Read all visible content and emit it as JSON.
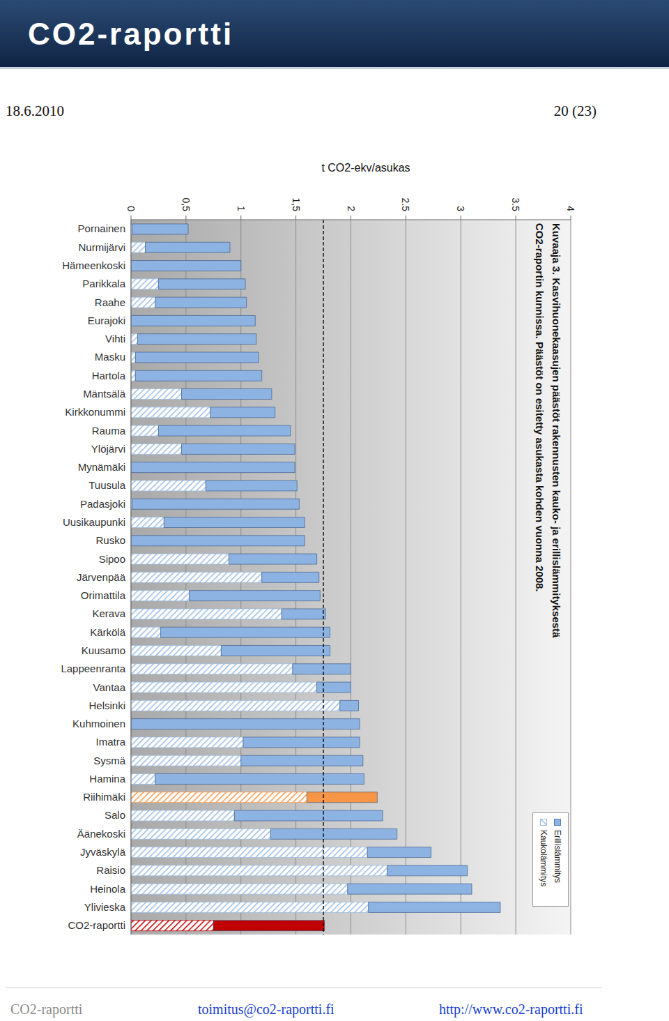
{
  "page": {
    "header": "CO2-raportti",
    "date": "18.6.2010",
    "page_number": "20 (23)",
    "footer": [
      "CO2-raportti",
      "toimitus@co2-raportti.fi",
      "http://www.co2-raportti.fi"
    ]
  },
  "chart_data": {
    "type": "bar",
    "orientation": "horizontal",
    "stacked": true,
    "title": "Kuvaaja 3. Kasvihuonekaasujen päästöt rakennusten kauko- ja erillislämmityksestä CO2-raportin kunnissa. Päästöt on esitetty asukasta kohden vuonna 2008.",
    "x_label": "t CO2-ekv/asukas",
    "categories": [
      "Pornainen",
      "Nurmijärvi",
      "Hämeenkoski",
      "Parikkala",
      "Raahe",
      "Eurajoki",
      "Vihti",
      "Masku",
      "Hartola",
      "Mäntsälä",
      "Kirkkonummi",
      "Rauma",
      "Ylöjärvi",
      "Mynämäki",
      "Tuusula",
      "Padasjoki",
      "Uusikaupunki",
      "Rusko",
      "Sipoo",
      "Järvenpää",
      "Orimattila",
      "Kerava",
      "Kärkölä",
      "Kuusamo",
      "Lappeenranta",
      "Vantaa",
      "Helsinki",
      "Kuhmoinen",
      "Imatra",
      "Sysmä",
      "Hamina",
      "Riihimäki",
      "Salo",
      "Äänekoski",
      "Jyväskylä",
      "Raisio",
      "Heinola",
      "Ylivieska",
      "CO2-raportti"
    ],
    "series": [
      {
        "name": "Kaukolämmitys",
        "values": [
          0.01,
          0.13,
          0,
          0.25,
          0.22,
          0,
          0.06,
          0.04,
          0.04,
          0.46,
          0.72,
          0.25,
          0.46,
          0,
          0.68,
          0.01,
          0.3,
          0,
          0.89,
          1.19,
          0.53,
          1.37,
          0.27,
          0.82,
          1.47,
          1.69,
          1.9,
          0,
          1.02,
          1.0,
          0.22,
          1.6,
          0.94,
          1.27,
          2.15,
          2.33,
          1.97,
          2.16,
          0.75
        ],
        "colors": [
          "#9bbbe0",
          "#9bbbe0",
          "#9bbbe0",
          "#9bbbe0",
          "#9bbbe0",
          "#9bbbe0",
          "#9bbbe0",
          "#9bbbe0",
          "#9bbbe0",
          "#9bbbe0",
          "#9bbbe0",
          "#9bbbe0",
          "#9bbbe0",
          "#9bbbe0",
          "#9bbbe0",
          "#9bbbe0",
          "#9bbbe0",
          "#9bbbe0",
          "#9bbbe0",
          "#9bbbe0",
          "#9bbbe0",
          "#9bbbe0",
          "#9bbbe0",
          "#9bbbe0",
          "#9bbbe0",
          "#9bbbe0",
          "#9bbbe0",
          "#9bbbe0",
          "#9bbbe0",
          "#9bbbe0",
          "#9bbbe0",
          "#f79646",
          "#9bbbe0",
          "#9bbbe0",
          "#9bbbe0",
          "#9bbbe0",
          "#9bbbe0",
          "#9bbbe0",
          "#c00000"
        ]
      },
      {
        "name": "Erillislämmitys",
        "values": [
          0.51,
          0.77,
          1.0,
          0.79,
          0.83,
          1.13,
          1.08,
          1.12,
          1.15,
          0.82,
          0.59,
          1.2,
          1.03,
          1.49,
          0.83,
          1.52,
          1.28,
          1.58,
          0.8,
          0.52,
          1.19,
          0.4,
          1.54,
          0.99,
          0.53,
          0.31,
          0.17,
          2.08,
          1.06,
          1.11,
          1.9,
          0.64,
          1.35,
          1.15,
          0.58,
          0.73,
          1.13,
          1.2,
          1.01
        ],
        "colors": [
          "#8db3e2",
          "#8db3e2",
          "#8db3e2",
          "#8db3e2",
          "#8db3e2",
          "#8db3e2",
          "#8db3e2",
          "#8db3e2",
          "#8db3e2",
          "#8db3e2",
          "#8db3e2",
          "#8db3e2",
          "#8db3e2",
          "#8db3e2",
          "#8db3e2",
          "#8db3e2",
          "#8db3e2",
          "#8db3e2",
          "#8db3e2",
          "#8db3e2",
          "#8db3e2",
          "#8db3e2",
          "#8db3e2",
          "#8db3e2",
          "#8db3e2",
          "#8db3e2",
          "#8db3e2",
          "#8db3e2",
          "#8db3e2",
          "#8db3e2",
          "#8db3e2",
          "#f79646",
          "#8db3e2",
          "#8db3e2",
          "#8db3e2",
          "#8db3e2",
          "#8db3e2",
          "#8db3e2",
          "#c00000"
        ]
      }
    ],
    "xlim": [
      0,
      4
    ],
    "xticks": [
      0,
      {
        "value": 0.5,
        "label": "0,5"
      },
      1,
      {
        "value": 1.5,
        "label": "1,5"
      },
      2,
      {
        "value": 2.5,
        "label": "2.5"
      },
      3,
      {
        "value": 3.5,
        "label": "3.5"
      },
      4
    ],
    "grid": true,
    "legend": "lower right",
    "reference_line": 1.75
  }
}
